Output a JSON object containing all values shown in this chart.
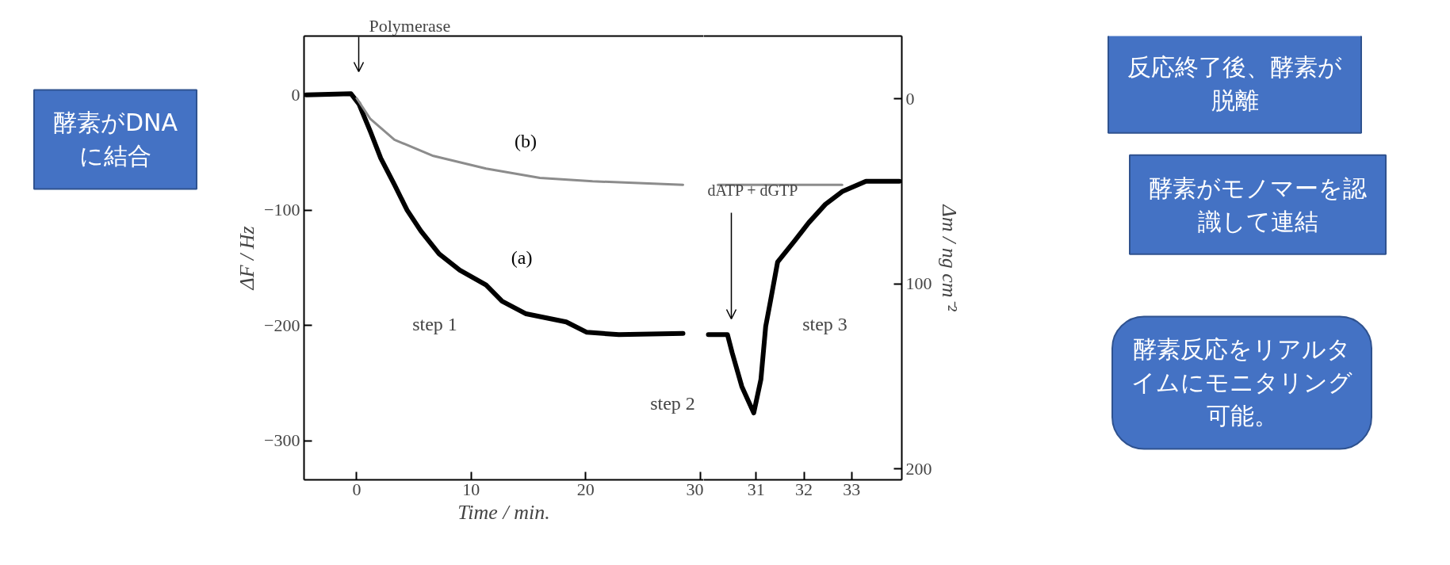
{
  "chart_data": [
    {
      "type": "line",
      "ylabel": "ΔF / Hz",
      "xlabel": "Time / min.",
      "xlim": [
        -4.6,
        30.3
      ],
      "xticks": [
        0,
        10,
        20,
        30
      ],
      "ylim": [
        -334,
        51
      ],
      "yticks": [
        0,
        -100,
        -200,
        -300
      ],
      "grid": false,
      "series": [
        {
          "name": "(a)",
          "color": "#000000",
          "x": [
            -4.4,
            -0.5,
            0.2,
            1.2,
            2.1,
            3.3,
            4.4,
            5.6,
            7.2,
            9.0,
            11.3,
            12.7,
            14.8,
            18.3,
            20.1,
            22.9,
            28.5
          ],
          "values": [
            0,
            1,
            -8,
            -32,
            -55,
            -78,
            -100,
            -118,
            -138,
            -152,
            -165,
            -179,
            -190,
            -197,
            -206,
            -208,
            -207
          ]
        },
        {
          "name": "(b)",
          "color": "#8c8c8c",
          "x": [
            0,
            1.2,
            3.3,
            6.7,
            11.3,
            16,
            20.6,
            28.5
          ],
          "values": [
            -3,
            -21,
            -39,
            -53,
            -64,
            -72,
            -75,
            -78
          ]
        }
      ],
      "annotations": [
        "Polymerase",
        "step 1",
        "step 2",
        "酵素がDNAに結合"
      ]
    },
    {
      "type": "line",
      "y2label": "Δm / ng cm⁻²",
      "xlim": [
        29.9,
        34.05
      ],
      "xticks": [
        31,
        32,
        33
      ],
      "ylim": [
        -334,
        51
      ],
      "y2lim": [
        206,
        -34
      ],
      "y2ticks": [
        0,
        100,
        200
      ],
      "grid": false,
      "series": [
        {
          "color": "#000000",
          "x": [
            30.0,
            30.4,
            30.5,
            30.7,
            30.95,
            31.1,
            31.2,
            31.3,
            31.45,
            31.8,
            32.1,
            32.45,
            32.8,
            33.3,
            34.0
          ],
          "values": [
            -208,
            -208,
            -224,
            -253,
            -276,
            -247,
            -201,
            -179,
            -145,
            -127,
            -111,
            -95,
            -84,
            -75,
            -75
          ]
        },
        {
          "color": "#8c8c8c",
          "x": [
            30.2,
            31.5,
            32.8
          ],
          "values": [
            -78,
            -78,
            -78
          ]
        }
      ],
      "annotations": [
        "dATP + dGTP",
        "step 3",
        "反応終了後、酵素が脱離",
        "酵素がモノマーを認識して連結",
        "酵素反応をリアルタイムにモニタリング可能。"
      ]
    }
  ]
}
